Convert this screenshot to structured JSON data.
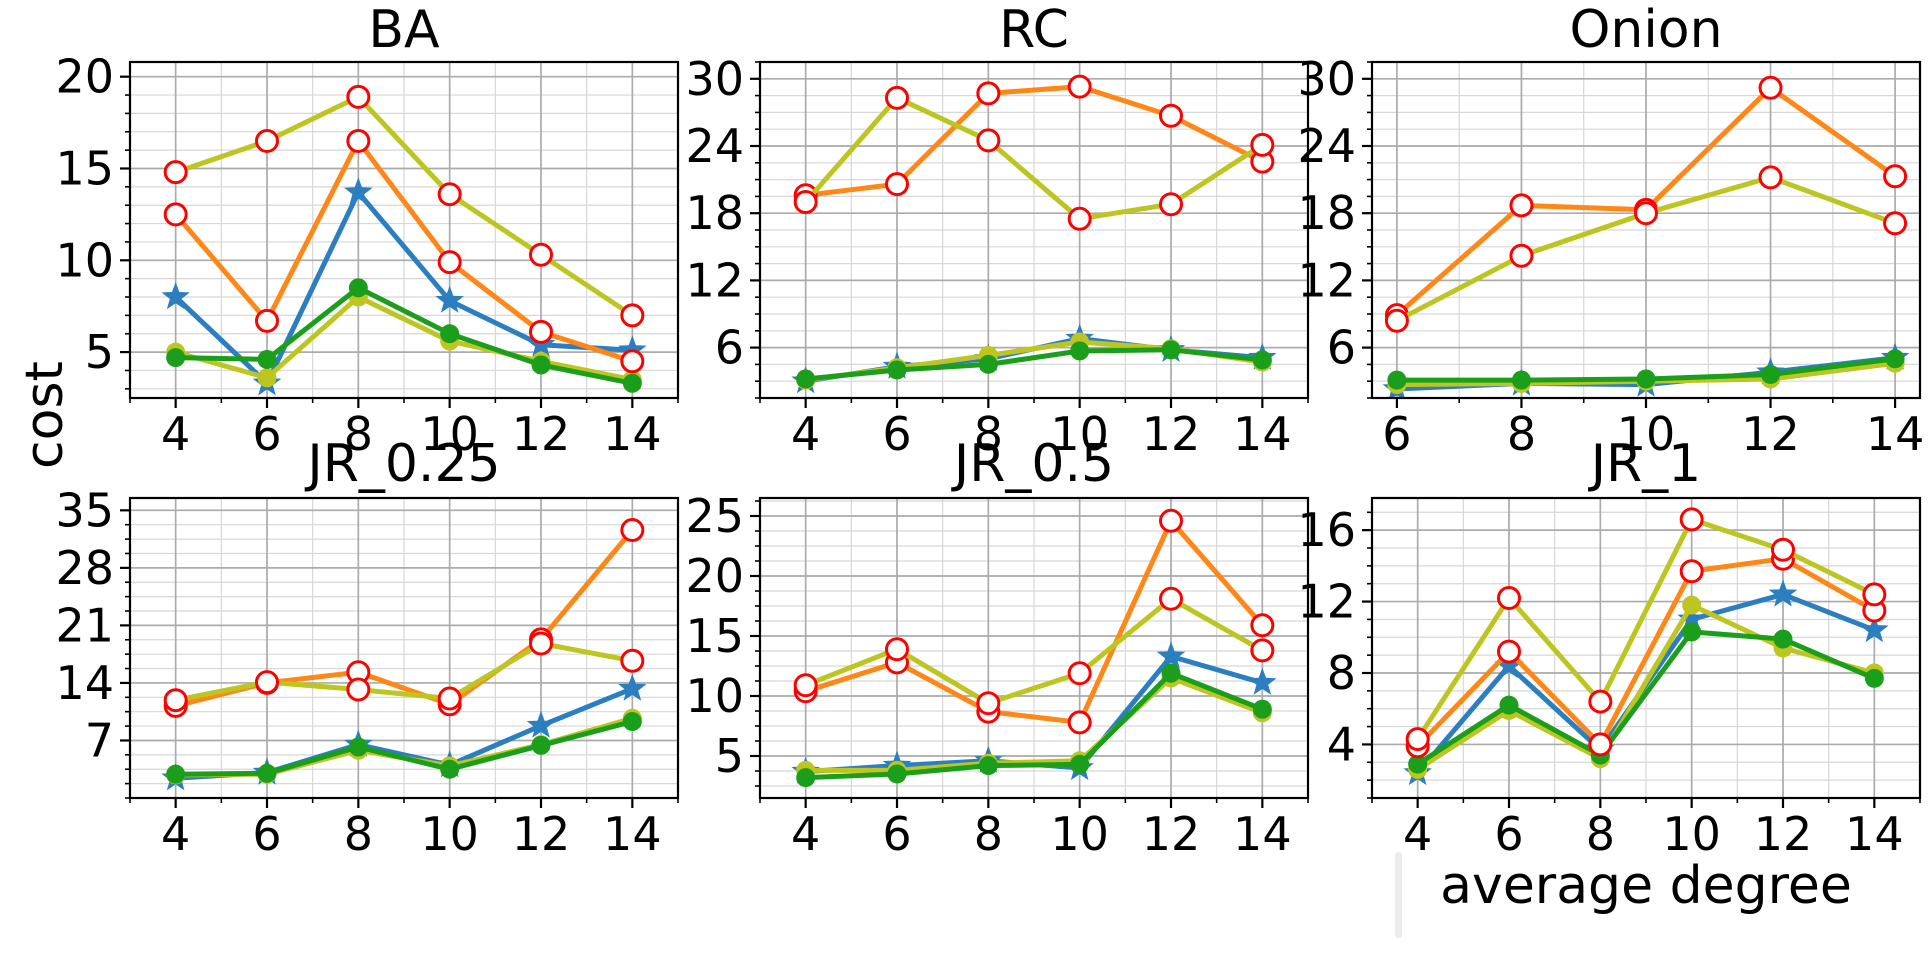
{
  "figure": {
    "ylabel": "cost",
    "xlabel": "average degree"
  },
  "colors": {
    "blue": "#2b7fc0",
    "green": "#1b9e1b",
    "olive": "#bdc520",
    "orange": "#ff8717",
    "marker_red": "#ff0000",
    "grid_major": "#ababab",
    "grid_minor": "#d7d7d7",
    "spine": "#000000",
    "text": "#000000"
  },
  "chart_data": [
    {
      "type": "line",
      "title": "BA",
      "x": [
        4,
        6,
        8,
        10,
        12,
        14
      ],
      "xticks": [
        4,
        6,
        8,
        10,
        12,
        14
      ],
      "yticks": [
        5,
        10,
        15,
        20
      ],
      "xlim": [
        3,
        15
      ],
      "ylim": [
        2.5,
        20.8
      ],
      "minor_x": 1,
      "minor_y": 1,
      "grid": true,
      "series": [
        {
          "name": "blue-star",
          "marker": "star",
          "color": "#2b7fc0",
          "values": [
            8.0,
            3.3,
            13.7,
            7.8,
            5.4,
            5.1
          ]
        },
        {
          "name": "olive-dot",
          "marker": "dot",
          "color": "#bdc520",
          "values": [
            5.0,
            3.6,
            8.0,
            5.6,
            4.5,
            3.5
          ]
        },
        {
          "name": "green-dot",
          "marker": "dot",
          "color": "#1b9e1b",
          "values": [
            4.7,
            4.6,
            8.5,
            6.0,
            4.3,
            3.3
          ]
        },
        {
          "name": "orange-open-circle",
          "marker": "open-circle",
          "color": "#ff8717",
          "values": [
            12.5,
            6.7,
            16.5,
            9.9,
            6.1,
            4.5
          ]
        },
        {
          "name": "olive-open-circle",
          "marker": "open-circle",
          "color": "#bdc520",
          "values": [
            14.8,
            16.5,
            18.9,
            13.6,
            10.3,
            7.0
          ]
        }
      ]
    },
    {
      "type": "line",
      "title": "RC",
      "x": [
        4,
        6,
        8,
        10,
        12,
        14
      ],
      "xticks": [
        4,
        6,
        8,
        10,
        12,
        14
      ],
      "yticks": [
        6,
        12,
        18,
        24,
        30
      ],
      "xlim": [
        3,
        15
      ],
      "ylim": [
        1.5,
        31.5
      ],
      "minor_x": 1,
      "minor_y": 1.5,
      "grid": true,
      "series": [
        {
          "name": "blue-star",
          "marker": "star",
          "color": "#2b7fc0",
          "values": [
            3.0,
            4.3,
            5.0,
            6.8,
            5.8,
            5.1
          ]
        },
        {
          "name": "olive-dot",
          "marker": "dot",
          "color": "#bdc520",
          "values": [
            3.1,
            4.2,
            5.3,
            6.5,
            5.9,
            4.7
          ]
        },
        {
          "name": "green-dot",
          "marker": "dot",
          "color": "#1b9e1b",
          "values": [
            3.2,
            4.0,
            4.5,
            5.7,
            5.8,
            4.9
          ]
        },
        {
          "name": "orange-open-circle",
          "marker": "open-circle",
          "color": "#ff8717",
          "values": [
            19.6,
            20.6,
            28.7,
            29.3,
            26.7,
            22.6
          ]
        },
        {
          "name": "olive-open-circle",
          "marker": "open-circle",
          "color": "#bdc520",
          "values": [
            19.0,
            28.3,
            24.5,
            17.5,
            18.8,
            24.1
          ]
        }
      ]
    },
    {
      "type": "line",
      "title": "Onion",
      "x": [
        6,
        8,
        10,
        12,
        14
      ],
      "xticks": [
        6,
        8,
        10,
        12,
        14
      ],
      "yticks": [
        6,
        12,
        18,
        24,
        30
      ],
      "xlim": [
        5.6,
        14.4
      ],
      "ylim": [
        1.5,
        31.5
      ],
      "minor_x": 1,
      "minor_y": 1.5,
      "grid": true,
      "series": [
        {
          "name": "blue-star",
          "marker": "star",
          "color": "#2b7fc0",
          "values": [
            2.3,
            2.8,
            2.7,
            3.8,
            5.1
          ]
        },
        {
          "name": "olive-dot",
          "marker": "dot",
          "color": "#bdc520",
          "values": [
            2.7,
            2.8,
            3.0,
            3.2,
            4.6
          ]
        },
        {
          "name": "green-dot",
          "marker": "dot",
          "color": "#1b9e1b",
          "values": [
            3.1,
            3.1,
            3.2,
            3.6,
            5.0
          ]
        },
        {
          "name": "orange-open-circle",
          "marker": "open-circle",
          "color": "#ff8717",
          "values": [
            8.9,
            18.7,
            18.3,
            29.2,
            21.3
          ]
        },
        {
          "name": "olive-open-circle",
          "marker": "open-circle",
          "color": "#bdc520",
          "values": [
            8.4,
            14.2,
            18.0,
            21.2,
            17.1
          ]
        }
      ]
    },
    {
      "type": "line",
      "title": "JR_0.25",
      "x": [
        4,
        6,
        8,
        10,
        12,
        14
      ],
      "xticks": [
        4,
        6,
        8,
        10,
        12,
        14
      ],
      "yticks": [
        7,
        14,
        21,
        28,
        35
      ],
      "xlim": [
        3,
        15
      ],
      "ylim": [
        0,
        36.5
      ],
      "minor_x": 1,
      "minor_y": 1.75,
      "grid": true,
      "series": [
        {
          "name": "blue-star",
          "marker": "star",
          "color": "#2b7fc0",
          "values": [
            2.4,
            3.1,
            6.5,
            4.0,
            8.8,
            13.3
          ]
        },
        {
          "name": "olive-dot",
          "marker": "dot",
          "color": "#bdc520",
          "values": [
            2.8,
            2.9,
            5.8,
            3.9,
            6.5,
            9.7
          ]
        },
        {
          "name": "green-dot",
          "marker": "dot",
          "color": "#1b9e1b",
          "values": [
            2.9,
            3.0,
            6.2,
            3.5,
            6.4,
            9.3
          ]
        },
        {
          "name": "orange-open-circle",
          "marker": "open-circle",
          "color": "#ff8717",
          "values": [
            11.2,
            14.0,
            15.3,
            11.4,
            19.3,
            32.6
          ]
        },
        {
          "name": "olive-open-circle",
          "marker": "open-circle",
          "color": "#bdc520",
          "values": [
            11.9,
            14.1,
            13.2,
            12.1,
            18.8,
            16.7
          ]
        }
      ]
    },
    {
      "type": "line",
      "title": "JR_0.5",
      "x": [
        4,
        6,
        8,
        10,
        12,
        14
      ],
      "xticks": [
        4,
        6,
        8,
        10,
        12,
        14
      ],
      "yticks": [
        5,
        10,
        15,
        20,
        25
      ],
      "xlim": [
        3,
        15
      ],
      "ylim": [
        1.5,
        26.5
      ],
      "minor_x": 1,
      "minor_y": 1.25,
      "grid": true,
      "series": [
        {
          "name": "blue-star",
          "marker": "star",
          "color": "#2b7fc0",
          "values": [
            3.7,
            4.2,
            4.6,
            4.0,
            13.3,
            11.1
          ]
        },
        {
          "name": "olive-dot",
          "marker": "dot",
          "color": "#bdc520",
          "values": [
            3.8,
            3.8,
            4.4,
            4.6,
            11.5,
            8.6
          ]
        },
        {
          "name": "green-dot",
          "marker": "dot",
          "color": "#1b9e1b",
          "values": [
            3.2,
            3.5,
            4.2,
            4.3,
            11.9,
            8.9
          ]
        },
        {
          "name": "orange-open-circle",
          "marker": "open-circle",
          "color": "#ff8717",
          "values": [
            10.4,
            12.8,
            8.7,
            7.8,
            24.6,
            15.9
          ]
        },
        {
          "name": "olive-open-circle",
          "marker": "open-circle",
          "color": "#bdc520",
          "values": [
            10.9,
            13.9,
            9.4,
            11.9,
            18.1,
            13.8
          ]
        }
      ]
    },
    {
      "type": "line",
      "title": "JR_1",
      "x": [
        4,
        6,
        8,
        10,
        12,
        14
      ],
      "xticks": [
        4,
        6,
        8,
        10,
        12,
        14
      ],
      "yticks": [
        4,
        8,
        12,
        16
      ],
      "xlim": [
        3,
        15
      ],
      "ylim": [
        1,
        17.8
      ],
      "minor_x": 1,
      "minor_y": 1,
      "grid": true,
      "series": [
        {
          "name": "blue-star",
          "marker": "star",
          "color": "#2b7fc0",
          "values": [
            2.4,
            8.4,
            3.7,
            11.0,
            12.4,
            10.4
          ]
        },
        {
          "name": "olive-dot",
          "marker": "dot",
          "color": "#bdc520",
          "values": [
            2.6,
            5.9,
            3.2,
            11.8,
            9.4,
            8.0
          ]
        },
        {
          "name": "green-dot",
          "marker": "dot",
          "color": "#1b9e1b",
          "values": [
            2.9,
            6.2,
            3.4,
            10.3,
            9.9,
            7.7
          ]
        },
        {
          "name": "orange-open-circle",
          "marker": "open-circle",
          "color": "#ff8717",
          "values": [
            3.9,
            9.2,
            4.0,
            13.7,
            14.4,
            11.5
          ]
        },
        {
          "name": "olive-open-circle",
          "marker": "open-circle",
          "color": "#bdc520",
          "values": [
            4.3,
            12.2,
            6.4,
            16.6,
            14.9,
            12.4
          ]
        }
      ]
    }
  ]
}
